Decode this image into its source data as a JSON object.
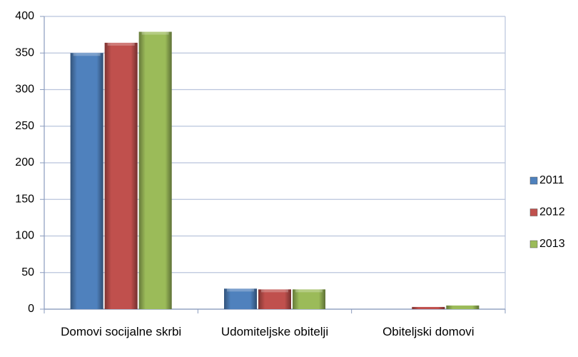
{
  "chart_data": {
    "type": "bar",
    "categories": [
      "Domovi socijalne skrbi",
      "Udomiteljske obitelji",
      "Obiteljski domovi"
    ],
    "series": [
      {
        "name": "2011",
        "color": "#4f81bd",
        "values": [
          350,
          28,
          0
        ]
      },
      {
        "name": "2012",
        "color": "#c0504d",
        "values": [
          364,
          27,
          3
        ]
      },
      {
        "name": "2013",
        "color": "#9bbb59",
        "values": [
          379,
          27,
          5
        ]
      }
    ],
    "ylim": [
      0,
      400
    ],
    "yticks": [
      0,
      50,
      100,
      150,
      200,
      250,
      300,
      350,
      400
    ],
    "grid": true,
    "legend": "right"
  }
}
